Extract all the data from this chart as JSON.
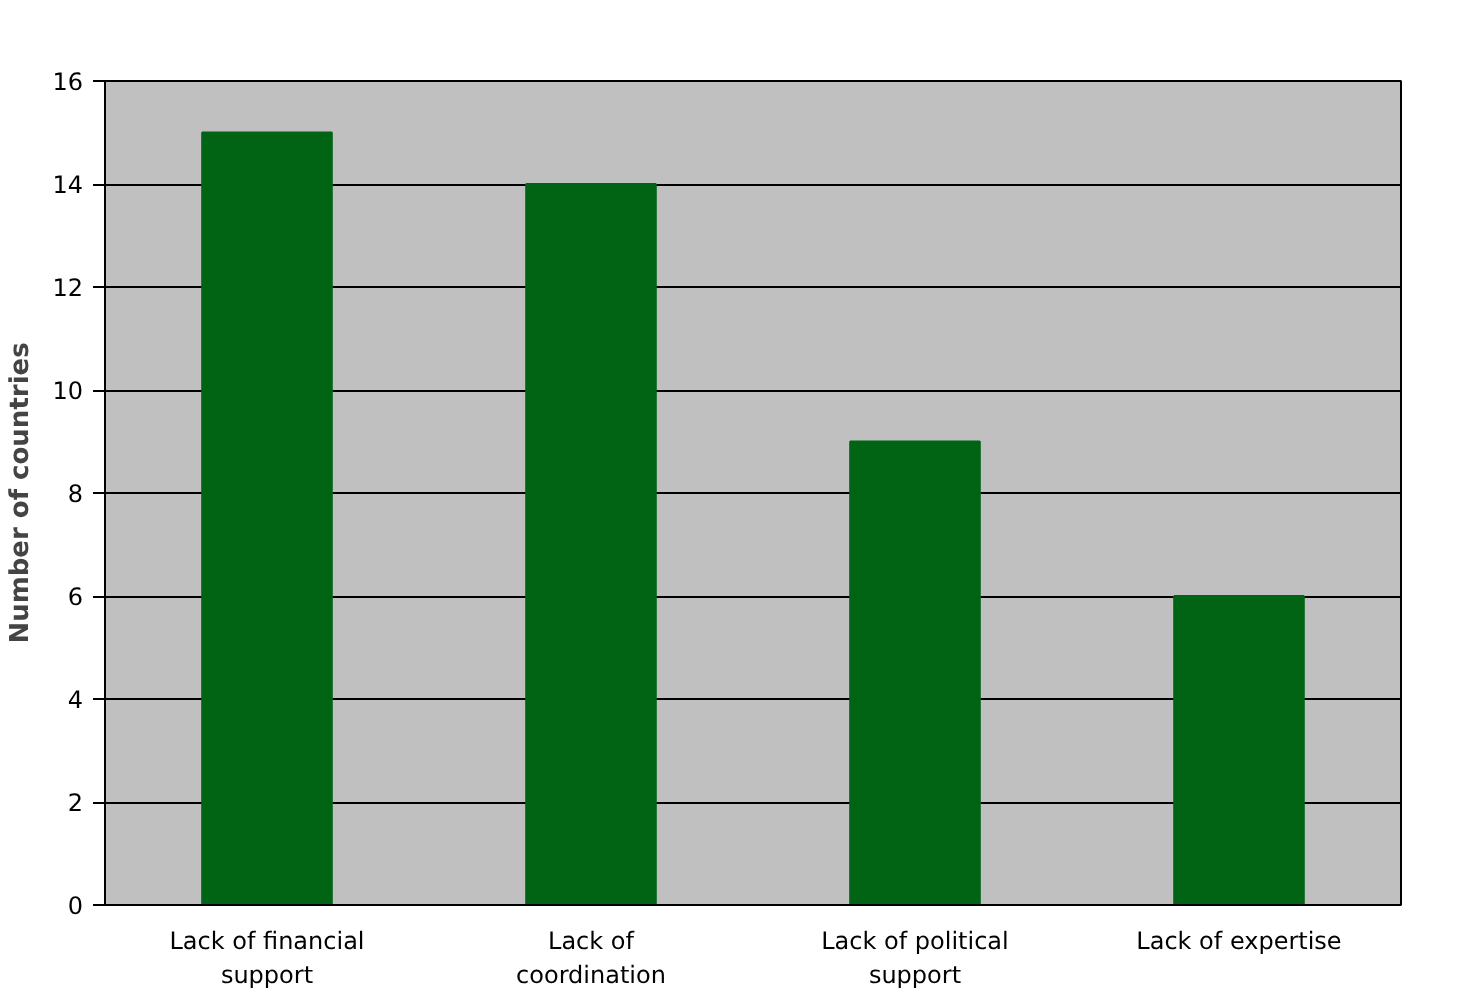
{
  "chart_data": {
    "type": "bar",
    "categories": [
      "Lack of financial support",
      "Lack of coordination",
      "Lack of political support",
      "Lack of expertise"
    ],
    "values": [
      15,
      14,
      9,
      6
    ],
    "color": "#006414",
    "ylabel": "Number of countries",
    "ylim": [
      0,
      16
    ],
    "yticks": [
      0,
      2,
      4,
      6,
      8,
      10,
      12,
      14,
      16
    ],
    "grid": "y"
  }
}
